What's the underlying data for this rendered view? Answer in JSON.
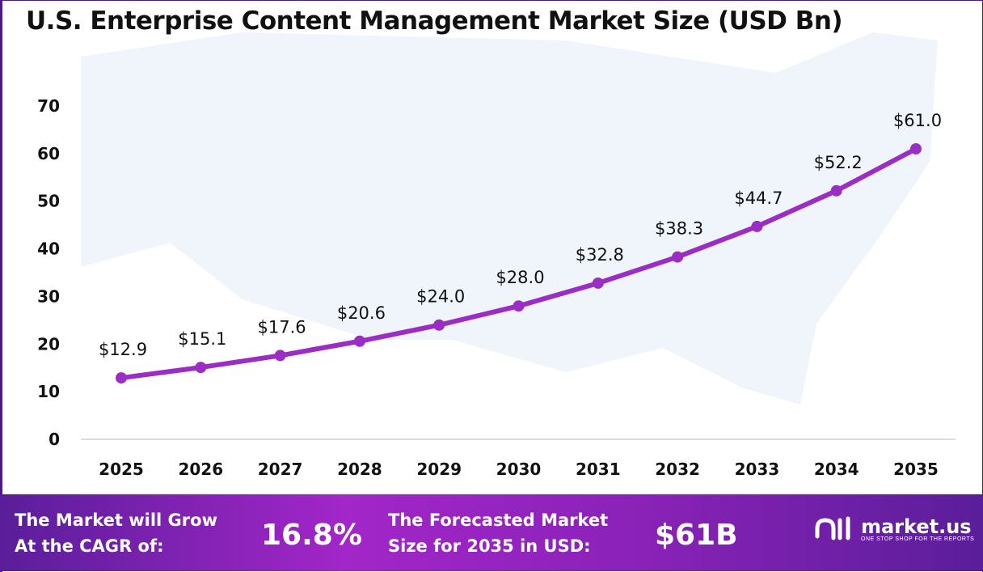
{
  "title": "U.S. Enterprise Content Management Market Size (USD Bn)",
  "chart_data": {
    "type": "line",
    "title": "U.S. Enterprise Content Management Market Size (USD Bn)",
    "categories": [
      "2025",
      "2026",
      "2027",
      "2028",
      "2029",
      "2030",
      "2031",
      "2032",
      "2033",
      "2034",
      "2035"
    ],
    "values": [
      12.9,
      15.1,
      17.6,
      20.6,
      24.0,
      28.0,
      32.8,
      38.3,
      44.7,
      52.2,
      61.0
    ],
    "data_labels": [
      "$12.9",
      "$15.1",
      "$17.6",
      "$20.6",
      "$24.0",
      "$28.0",
      "$32.8",
      "$38.3",
      "$44.7",
      "$52.2",
      "$61.0"
    ],
    "y_ticks": [
      "0",
      "10",
      "20",
      "30",
      "40",
      "50",
      "60",
      "70"
    ],
    "ylim": [
      0,
      70
    ],
    "grid": false,
    "line_color": "#9b2dc4"
  },
  "footer": {
    "cagr_label_1": "The Market will Grow",
    "cagr_label_2": "At the CAGR of:",
    "cagr_value": "16.8%",
    "forecast_label_1": "The Forecasted Market",
    "forecast_label_2": "Size for 2035 in USD:",
    "forecast_value": "$61B",
    "logo_name": "market.us",
    "logo_tagline": "ONE STOP SHOP FOR THE REPORTS"
  }
}
